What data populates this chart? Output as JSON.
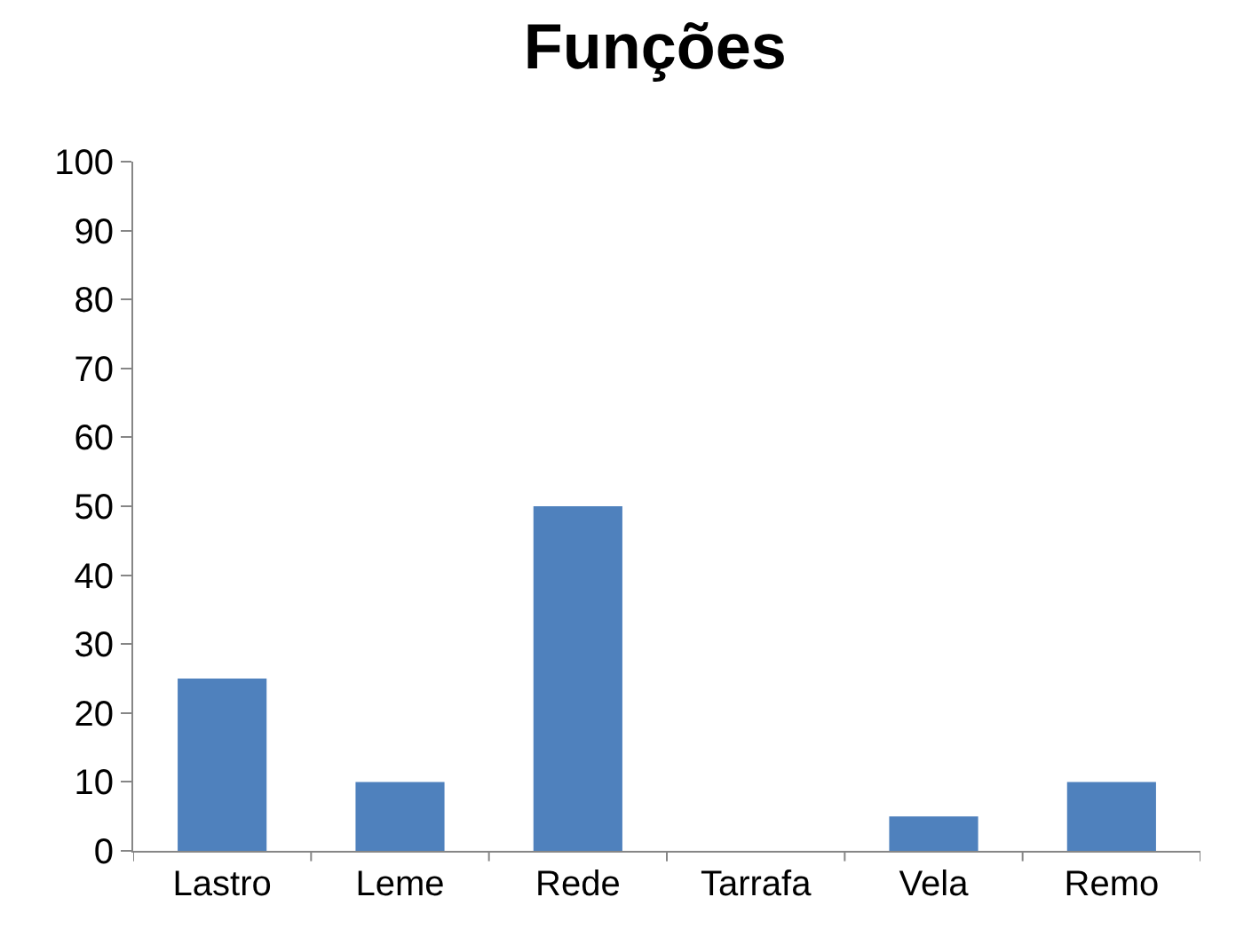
{
  "chart_data": {
    "type": "bar",
    "title": "Funções",
    "categories": [
      "Lastro",
      "Leme",
      "Rede",
      "Tarrafa",
      "Vela",
      "Remo"
    ],
    "values": [
      25,
      10,
      50,
      0,
      5,
      10
    ],
    "color": "#4f81bd",
    "ylim": [
      0,
      100
    ],
    "yticks": [
      0,
      10,
      20,
      30,
      40,
      50,
      60,
      70,
      80,
      90,
      100
    ],
    "grid": false,
    "legend": false
  }
}
